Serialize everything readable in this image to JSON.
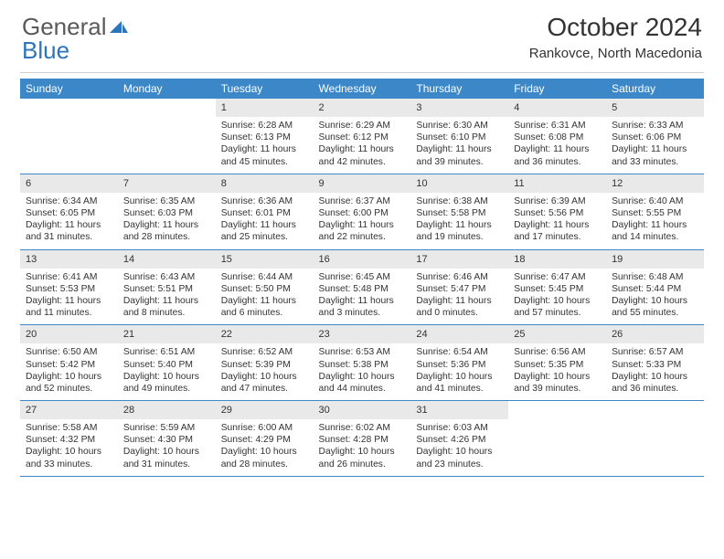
{
  "logo_word1": "General",
  "logo_word2": "Blue",
  "title": "October 2024",
  "subtitle": "Rankovce, North Macedonia",
  "colors": {
    "header_bg": "#3b87c8",
    "daynum_bg": "#e9e9e9",
    "text": "#333333",
    "logo_gray": "#5a5a5a",
    "logo_blue": "#2d75bb",
    "rule": "#cfcfcf"
  },
  "day_headers": [
    "Sunday",
    "Monday",
    "Tuesday",
    "Wednesday",
    "Thursday",
    "Friday",
    "Saturday"
  ],
  "weeks": [
    [
      {
        "n": "",
        "sunrise": "",
        "sunset": "",
        "day": ""
      },
      {
        "n": "",
        "sunrise": "",
        "sunset": "",
        "day": ""
      },
      {
        "n": "1",
        "sunrise": "Sunrise: 6:28 AM",
        "sunset": "Sunset: 6:13 PM",
        "day": "Daylight: 11 hours and 45 minutes."
      },
      {
        "n": "2",
        "sunrise": "Sunrise: 6:29 AM",
        "sunset": "Sunset: 6:12 PM",
        "day": "Daylight: 11 hours and 42 minutes."
      },
      {
        "n": "3",
        "sunrise": "Sunrise: 6:30 AM",
        "sunset": "Sunset: 6:10 PM",
        "day": "Daylight: 11 hours and 39 minutes."
      },
      {
        "n": "4",
        "sunrise": "Sunrise: 6:31 AM",
        "sunset": "Sunset: 6:08 PM",
        "day": "Daylight: 11 hours and 36 minutes."
      },
      {
        "n": "5",
        "sunrise": "Sunrise: 6:33 AM",
        "sunset": "Sunset: 6:06 PM",
        "day": "Daylight: 11 hours and 33 minutes."
      }
    ],
    [
      {
        "n": "6",
        "sunrise": "Sunrise: 6:34 AM",
        "sunset": "Sunset: 6:05 PM",
        "day": "Daylight: 11 hours and 31 minutes."
      },
      {
        "n": "7",
        "sunrise": "Sunrise: 6:35 AM",
        "sunset": "Sunset: 6:03 PM",
        "day": "Daylight: 11 hours and 28 minutes."
      },
      {
        "n": "8",
        "sunrise": "Sunrise: 6:36 AM",
        "sunset": "Sunset: 6:01 PM",
        "day": "Daylight: 11 hours and 25 minutes."
      },
      {
        "n": "9",
        "sunrise": "Sunrise: 6:37 AM",
        "sunset": "Sunset: 6:00 PM",
        "day": "Daylight: 11 hours and 22 minutes."
      },
      {
        "n": "10",
        "sunrise": "Sunrise: 6:38 AM",
        "sunset": "Sunset: 5:58 PM",
        "day": "Daylight: 11 hours and 19 minutes."
      },
      {
        "n": "11",
        "sunrise": "Sunrise: 6:39 AM",
        "sunset": "Sunset: 5:56 PM",
        "day": "Daylight: 11 hours and 17 minutes."
      },
      {
        "n": "12",
        "sunrise": "Sunrise: 6:40 AM",
        "sunset": "Sunset: 5:55 PM",
        "day": "Daylight: 11 hours and 14 minutes."
      }
    ],
    [
      {
        "n": "13",
        "sunrise": "Sunrise: 6:41 AM",
        "sunset": "Sunset: 5:53 PM",
        "day": "Daylight: 11 hours and 11 minutes."
      },
      {
        "n": "14",
        "sunrise": "Sunrise: 6:43 AM",
        "sunset": "Sunset: 5:51 PM",
        "day": "Daylight: 11 hours and 8 minutes."
      },
      {
        "n": "15",
        "sunrise": "Sunrise: 6:44 AM",
        "sunset": "Sunset: 5:50 PM",
        "day": "Daylight: 11 hours and 6 minutes."
      },
      {
        "n": "16",
        "sunrise": "Sunrise: 6:45 AM",
        "sunset": "Sunset: 5:48 PM",
        "day": "Daylight: 11 hours and 3 minutes."
      },
      {
        "n": "17",
        "sunrise": "Sunrise: 6:46 AM",
        "sunset": "Sunset: 5:47 PM",
        "day": "Daylight: 11 hours and 0 minutes."
      },
      {
        "n": "18",
        "sunrise": "Sunrise: 6:47 AM",
        "sunset": "Sunset: 5:45 PM",
        "day": "Daylight: 10 hours and 57 minutes."
      },
      {
        "n": "19",
        "sunrise": "Sunrise: 6:48 AM",
        "sunset": "Sunset: 5:44 PM",
        "day": "Daylight: 10 hours and 55 minutes."
      }
    ],
    [
      {
        "n": "20",
        "sunrise": "Sunrise: 6:50 AM",
        "sunset": "Sunset: 5:42 PM",
        "day": "Daylight: 10 hours and 52 minutes."
      },
      {
        "n": "21",
        "sunrise": "Sunrise: 6:51 AM",
        "sunset": "Sunset: 5:40 PM",
        "day": "Daylight: 10 hours and 49 minutes."
      },
      {
        "n": "22",
        "sunrise": "Sunrise: 6:52 AM",
        "sunset": "Sunset: 5:39 PM",
        "day": "Daylight: 10 hours and 47 minutes."
      },
      {
        "n": "23",
        "sunrise": "Sunrise: 6:53 AM",
        "sunset": "Sunset: 5:38 PM",
        "day": "Daylight: 10 hours and 44 minutes."
      },
      {
        "n": "24",
        "sunrise": "Sunrise: 6:54 AM",
        "sunset": "Sunset: 5:36 PM",
        "day": "Daylight: 10 hours and 41 minutes."
      },
      {
        "n": "25",
        "sunrise": "Sunrise: 6:56 AM",
        "sunset": "Sunset: 5:35 PM",
        "day": "Daylight: 10 hours and 39 minutes."
      },
      {
        "n": "26",
        "sunrise": "Sunrise: 6:57 AM",
        "sunset": "Sunset: 5:33 PM",
        "day": "Daylight: 10 hours and 36 minutes."
      }
    ],
    [
      {
        "n": "27",
        "sunrise": "Sunrise: 5:58 AM",
        "sunset": "Sunset: 4:32 PM",
        "day": "Daylight: 10 hours and 33 minutes."
      },
      {
        "n": "28",
        "sunrise": "Sunrise: 5:59 AM",
        "sunset": "Sunset: 4:30 PM",
        "day": "Daylight: 10 hours and 31 minutes."
      },
      {
        "n": "29",
        "sunrise": "Sunrise: 6:00 AM",
        "sunset": "Sunset: 4:29 PM",
        "day": "Daylight: 10 hours and 28 minutes."
      },
      {
        "n": "30",
        "sunrise": "Sunrise: 6:02 AM",
        "sunset": "Sunset: 4:28 PM",
        "day": "Daylight: 10 hours and 26 minutes."
      },
      {
        "n": "31",
        "sunrise": "Sunrise: 6:03 AM",
        "sunset": "Sunset: 4:26 PM",
        "day": "Daylight: 10 hours and 23 minutes."
      },
      {
        "n": "",
        "sunrise": "",
        "sunset": "",
        "day": ""
      },
      {
        "n": "",
        "sunrise": "",
        "sunset": "",
        "day": ""
      }
    ]
  ]
}
